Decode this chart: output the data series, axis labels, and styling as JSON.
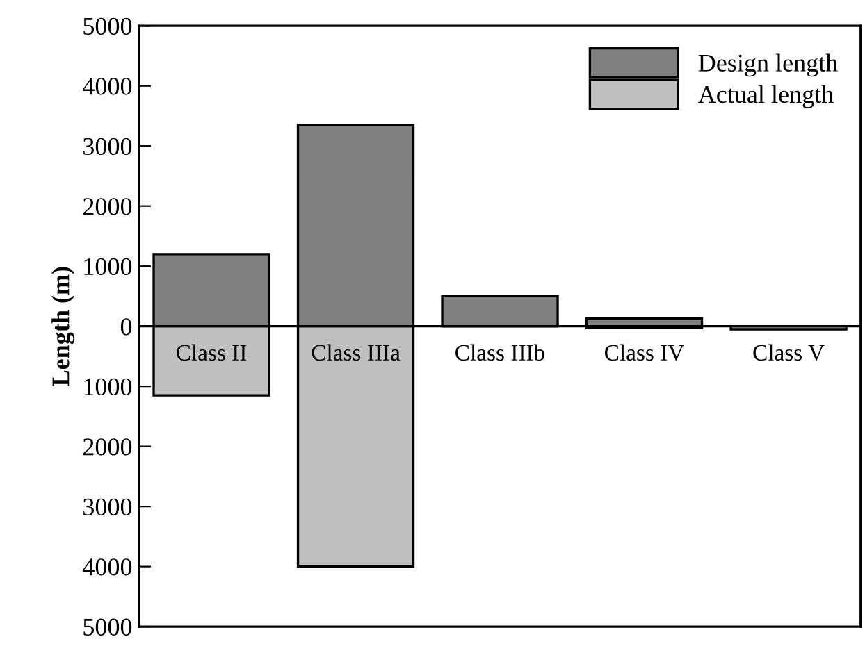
{
  "chart_data": {
    "type": "bar",
    "ylabel": "Length (m)",
    "categories": [
      "Class II",
      "Class IIIa",
      "Class IIIb",
      "Class IV",
      "Class V"
    ],
    "series": [
      {
        "name": "Design length",
        "color": "#808080",
        "values": [
          1200,
          3350,
          500,
          130,
          null
        ]
      },
      {
        "name": "Actual length",
        "color": "#c0c0c0",
        "values": [
          -1150,
          -4000,
          0,
          -30,
          -50
        ]
      }
    ],
    "ylim": [
      -5000,
      5000
    ],
    "yticks": [
      {
        "value": -5000,
        "label": "5000"
      },
      {
        "value": -4000,
        "label": "4000"
      },
      {
        "value": -3000,
        "label": "3000"
      },
      {
        "value": -2000,
        "label": "2000"
      },
      {
        "value": -1000,
        "label": "1000"
      },
      0,
      1000,
      2000,
      3000,
      4000,
      5000
    ],
    "tick_labels": "y",
    "grid": false,
    "legend": "top right"
  }
}
